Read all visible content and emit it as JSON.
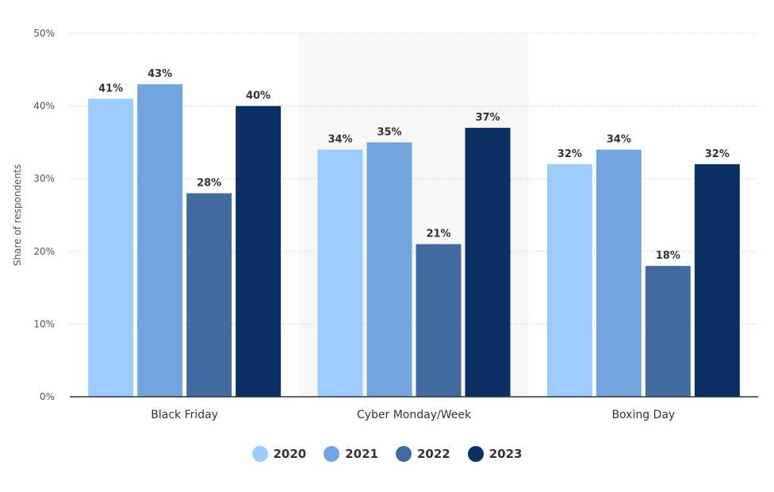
{
  "chart_data": {
    "type": "bar",
    "categories": [
      "Black Friday",
      "Cyber Monday/Week",
      "Boxing Day"
    ],
    "series": [
      {
        "name": "2020",
        "values": [
          41,
          34,
          32
        ],
        "color": "#9dcbfc"
      },
      {
        "name": "2021",
        "values": [
          43,
          35,
          34
        ],
        "color": "#72a5df"
      },
      {
        "name": "2022",
        "values": [
          28,
          21,
          18
        ],
        "color": "#446b9f"
      },
      {
        "name": "2023",
        "values": [
          40,
          37,
          32
        ],
        "color": "#0b3163"
      }
    ],
    "ylabel": "Share of respondents",
    "ylim": [
      0,
      50
    ],
    "yticks": [
      0,
      10,
      20,
      30,
      40,
      50
    ],
    "ytick_labels": [
      "0%",
      "10%",
      "20%",
      "30%",
      "40%",
      "50%"
    ],
    "value_suffix": "%",
    "grid": true,
    "legend_position": "bottom-center",
    "highlighted_category": "Cyber Monday/Week",
    "highlight_color": "#f7f7f7"
  }
}
